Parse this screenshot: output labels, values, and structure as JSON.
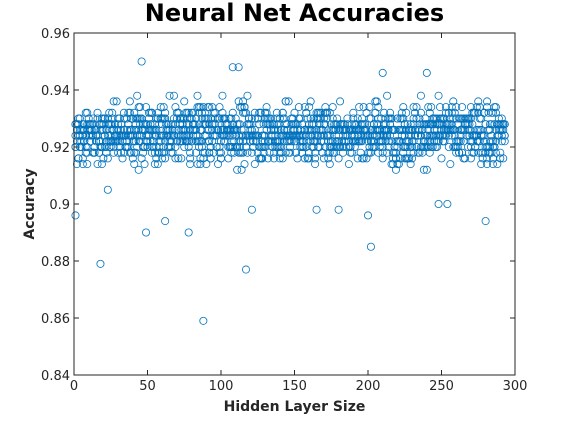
{
  "chart_data": {
    "type": "scatter",
    "title": "Neural Net Accuracies",
    "xlabel": "Hidden Layer Size",
    "ylabel": "Accuracy",
    "xlim": [
      0,
      300
    ],
    "ylim": [
      0.84,
      0.96
    ],
    "xticks": [
      0,
      50,
      100,
      150,
      200,
      250,
      300
    ],
    "yticks": [
      0.84,
      0.86,
      0.88,
      0.9,
      0.92,
      0.94,
      0.96
    ],
    "xtick_labels": [
      "0",
      "50",
      "100",
      "150",
      "200",
      "250",
      "300"
    ],
    "ytick_labels": [
      "0.84",
      "0.86",
      "0.88",
      "0.9",
      "0.92",
      "0.94",
      "0.96"
    ],
    "grid": false,
    "marker": "open-circle",
    "series_color": "#0072BD",
    "x_range_observed": [
      1,
      293
    ],
    "outliers": [
      {
        "x": 1,
        "y": 0.896
      },
      {
        "x": 18,
        "y": 0.879
      },
      {
        "x": 23,
        "y": 0.905
      },
      {
        "x": 46,
        "y": 0.95
      },
      {
        "x": 49,
        "y": 0.89
      },
      {
        "x": 62,
        "y": 0.894
      },
      {
        "x": 78,
        "y": 0.89
      },
      {
        "x": 88,
        "y": 0.859
      },
      {
        "x": 108,
        "y": 0.948
      },
      {
        "x": 112,
        "y": 0.948
      },
      {
        "x": 117,
        "y": 0.877
      },
      {
        "x": 121,
        "y": 0.898
      },
      {
        "x": 165,
        "y": 0.898
      },
      {
        "x": 180,
        "y": 0.898
      },
      {
        "x": 200,
        "y": 0.896
      },
      {
        "x": 202,
        "y": 0.885
      },
      {
        "x": 210,
        "y": 0.946
      },
      {
        "x": 240,
        "y": 0.946
      },
      {
        "x": 248,
        "y": 0.9
      },
      {
        "x": 254,
        "y": 0.9
      },
      {
        "x": 280,
        "y": 0.894
      }
    ]
  }
}
